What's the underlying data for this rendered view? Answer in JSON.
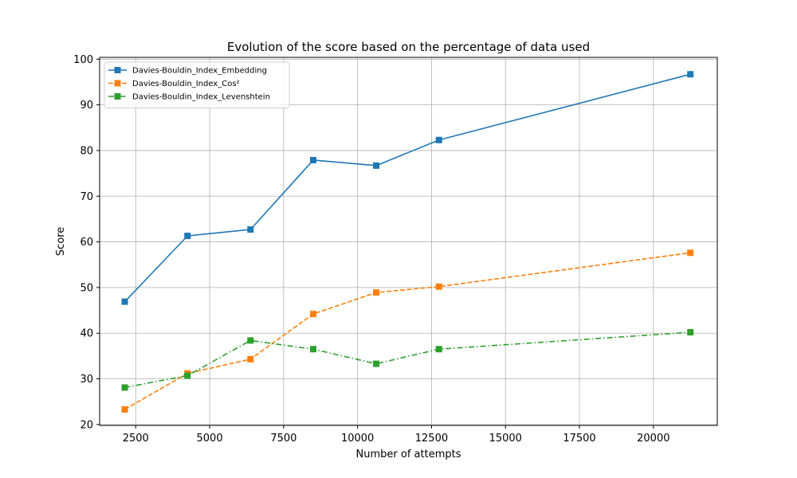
{
  "chart_data": {
    "type": "line",
    "title": "Evolution of the score based on the percentage of data used",
    "xlabel": "Number of attempts",
    "ylabel": "Score",
    "xlim": [
      1280,
      22160
    ],
    "ylim": [
      19.8,
      100.4
    ],
    "xticks": [
      2500,
      5000,
      7500,
      10000,
      12500,
      15000,
      17500,
      20000
    ],
    "yticks": [
      20,
      30,
      40,
      50,
      60,
      70,
      80,
      90,
      100
    ],
    "grid": true,
    "legend_position": "top-left",
    "x": [
      2130,
      4250,
      6380,
      8500,
      10630,
      12750,
      21250
    ],
    "series": [
      {
        "name": "Davies-Bouldin_Index_Embedding",
        "color": "#1f77b4",
        "line_style": "solid",
        "marker": "square",
        "values": [
          46.9,
          61.3,
          62.7,
          77.9,
          76.7,
          82.3,
          96.7
        ]
      },
      {
        "name": "Davies-Bouldin_Index_Cos²",
        "color": "#ff7f0e",
        "line_style": "dashed",
        "marker": "square",
        "values": [
          23.3,
          31.2,
          34.3,
          44.2,
          48.9,
          50.2,
          57.6
        ]
      },
      {
        "name": "Davies-Bouldin_Index_Levenshtein",
        "color": "#2ca02c",
        "line_style": "dashdot",
        "marker": "square",
        "values": [
          28.1,
          30.7,
          38.4,
          36.5,
          33.3,
          36.5,
          40.2
        ]
      }
    ]
  }
}
